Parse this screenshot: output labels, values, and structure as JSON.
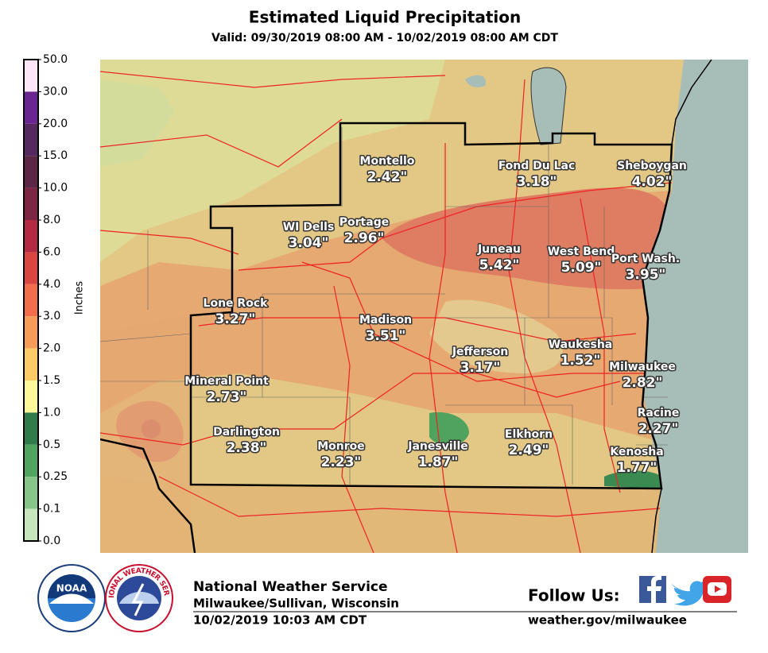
{
  "header": {
    "title": "Estimated Liquid Precipitation",
    "subtitle": "Valid: 09/30/2019 08:00 AM - 10/02/2019 08:00 AM CDT"
  },
  "legend": {
    "title": "Inches",
    "labels": [
      "50.0",
      "30.0",
      "20.0",
      "15.0",
      "10.0",
      "8.0",
      "6.0",
      "4.0",
      "3.0",
      "2.0",
      "1.5",
      "1.0",
      "0.5",
      "0.25",
      "0.1",
      "0.0"
    ],
    "colors": [
      "#fde6f8",
      "#6b2590",
      "#55285f",
      "#5c2747",
      "#7d2644",
      "#b42a42",
      "#d94540",
      "#f26d4b",
      "#f79c58",
      "#fccb66",
      "#fff89a",
      "#2f7b49",
      "#50a460",
      "#86c589",
      "#c6e7bb",
      "#f3f3f3"
    ]
  },
  "cities": [
    {
      "name": "Montello",
      "amount": "2.42\""
    },
    {
      "name": "Fond Du Lac",
      "amount": "3.18\""
    },
    {
      "name": "Sheboygan",
      "amount": "4.02\""
    },
    {
      "name": "WI Dells",
      "amount": "3.04\""
    },
    {
      "name": "Portage",
      "amount": "2.96\""
    },
    {
      "name": "Juneau",
      "amount": "5.42\""
    },
    {
      "name": "West Bend",
      "amount": "5.09\""
    },
    {
      "name": "Port Wash.",
      "amount": "3.95\""
    },
    {
      "name": "Lone Rock",
      "amount": "3.27\""
    },
    {
      "name": "Madison",
      "amount": "3.51\""
    },
    {
      "name": "Jefferson",
      "amount": "3.17\""
    },
    {
      "name": "Waukesha",
      "amount": "1.52\""
    },
    {
      "name": "Milwaukee",
      "amount": "2.82\""
    },
    {
      "name": "Mineral Point",
      "amount": "2.73\""
    },
    {
      "name": "Racine",
      "amount": "2.27\""
    },
    {
      "name": "Darlington",
      "amount": "2.38\""
    },
    {
      "name": "Monroe",
      "amount": "2.23\""
    },
    {
      "name": "Janesville",
      "amount": "1.87\""
    },
    {
      "name": "Elkhorn",
      "amount": "2.49\""
    },
    {
      "name": "Kenosha",
      "amount": "1.77\""
    }
  ],
  "footer": {
    "logo_noaa": "NOAA",
    "logo_nws": "NATIONAL WEATHER SERVICE",
    "office": "National Weather Service",
    "location": "Milwaukee/Sullivan, Wisconsin",
    "issued": "10/02/2019 10:03 AM CDT",
    "follow": "Follow Us:",
    "website": "weather.gov/milwaukee"
  }
}
